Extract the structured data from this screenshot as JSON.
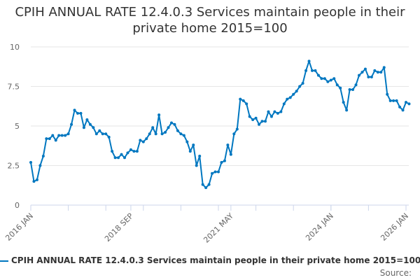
{
  "chart_data": {
    "type": "line",
    "title": "CPIH ANNUAL RATE 12.4.0.3 Services maintain people in their private home 2015=100",
    "xlabel": "",
    "ylabel": "",
    "ylim": [
      0,
      10
    ],
    "yticks": [
      "0",
      "2.5",
      "5",
      "7.5",
      "10"
    ],
    "xticks": [
      "2016 JAN",
      "2018 SEP",
      "2021 MAY",
      "2024 JAN",
      "2026 JAN"
    ],
    "x_start": "2016 JAN",
    "x_end": "2026 JAN",
    "grid": true,
    "legend_position": "bottom",
    "series": [
      {
        "name": "CPIH ANNUAL RATE 12.4.0.3 Services maintain people in their private home 2015=100",
        "color": "#0077c0",
        "values": [
          2.7,
          1.5,
          1.6,
          2.5,
          3.1,
          4.2,
          4.2,
          4.4,
          4.1,
          4.4,
          4.4,
          4.4,
          4.5,
          5.1,
          6.0,
          5.8,
          5.8,
          4.9,
          5.4,
          5.1,
          4.9,
          4.5,
          4.7,
          4.5,
          4.5,
          4.3,
          3.4,
          3.0,
          3.0,
          3.2,
          3.0,
          3.3,
          3.5,
          3.4,
          3.4,
          4.1,
          4.0,
          4.2,
          4.5,
          4.9,
          4.5,
          5.7,
          4.5,
          4.6,
          4.9,
          5.2,
          5.1,
          4.7,
          4.5,
          4.4,
          4.0,
          3.4,
          3.8,
          2.5,
          3.1,
          1.3,
          1.1,
          1.3,
          2.0,
          2.1,
          2.1,
          2.7,
          2.8,
          3.8,
          3.2,
          4.5,
          4.8,
          6.7,
          6.6,
          6.4,
          5.6,
          5.4,
          5.5,
          5.1,
          5.3,
          5.3,
          5.9,
          5.6,
          5.9,
          5.8,
          5.9,
          6.4,
          6.7,
          6.8,
          7.0,
          7.2,
          7.5,
          7.7,
          8.5,
          9.1,
          8.5,
          8.5,
          8.2,
          8.0,
          8.0,
          7.8,
          7.9,
          8.0,
          7.6,
          7.4,
          6.5,
          6.0,
          7.3,
          7.3,
          7.6,
          8.2,
          8.4,
          8.6,
          8.1,
          8.1,
          8.5,
          8.4,
          8.4,
          8.7,
          7.0,
          6.6,
          6.6,
          6.6,
          6.2,
          6.0,
          6.5,
          6.4
        ]
      }
    ]
  },
  "source_label": "Source:"
}
